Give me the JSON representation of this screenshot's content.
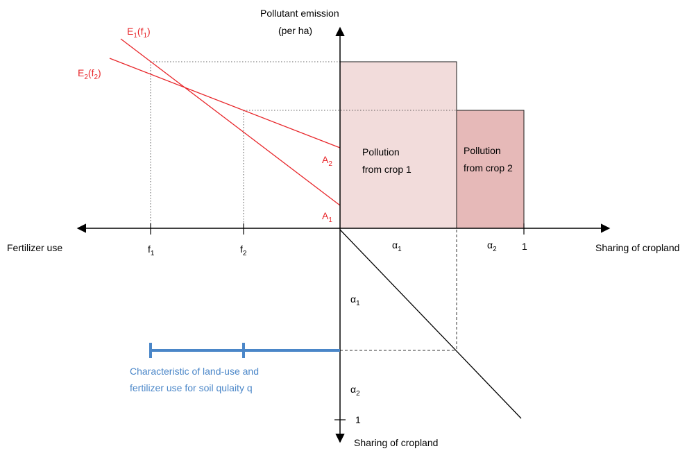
{
  "labels": {
    "y_axis_title_line1": "Pollutant emission",
    "y_axis_title_line2": "(per ha)",
    "x_left_label": "Fertilizer use",
    "x_right_label": "Sharing of cropland",
    "y_down_label": "Sharing of cropland",
    "one_right": "1",
    "one_down": "1"
  },
  "emission_lines": {
    "e1": {
      "base": "E",
      "sub": "1",
      "arg_base": "f",
      "arg_sub": "1"
    },
    "e2": {
      "base": "E",
      "sub": "2",
      "arg_base": "f",
      "arg_sub": "2"
    }
  },
  "fertilizer_ticks": {
    "f1": {
      "base": "f",
      "sub": "1"
    },
    "f2": {
      "base": "f",
      "sub": "2"
    }
  },
  "intercepts": {
    "a1": {
      "base": "A",
      "sub": "1"
    },
    "a2": {
      "base": "A",
      "sub": "2"
    }
  },
  "share_labels": {
    "alpha1_x": {
      "base": "α",
      "sub": "1"
    },
    "alpha2_x": {
      "base": "α",
      "sub": "2"
    },
    "alpha1_y": {
      "base": "α",
      "sub": "1"
    },
    "alpha2_y": {
      "base": "α",
      "sub": "2"
    }
  },
  "crop1_box": {
    "line1": "Pollution",
    "line2": "from crop 1"
  },
  "crop2_box": {
    "line1": "Pollution",
    "line2": "from crop 2"
  },
  "characteristic": {
    "line1": "Characteristic of land-use and",
    "line2": "fertilizer use for soil qulaity q"
  },
  "colors": {
    "axis": "#000000",
    "emission_lines": "#e8262a",
    "crop1_fill": "#f2dcdb",
    "crop2_fill": "#e6b9b8",
    "box_stroke": "#1a1a1a",
    "characteristic": "#4a86c8",
    "guide": "#333333"
  }
}
